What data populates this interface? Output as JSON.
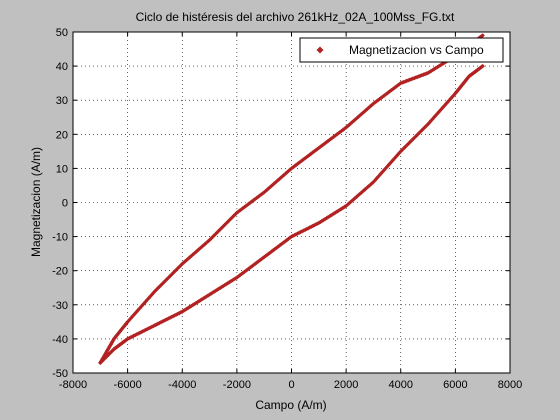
{
  "figure": {
    "background": "#c0c0c0"
  },
  "chart_data": {
    "type": "scatter",
    "title": "Ciclo de histéresis del archivo 261kHz_02A_100Mss_FG.txt",
    "xlabel": "Campo (A/m)",
    "ylabel": "Magnetizacion (A/m)",
    "xlim": [
      -8000,
      8000
    ],
    "ylim": [
      -50,
      50
    ],
    "xticks": [
      -8000,
      -6000,
      -4000,
      -2000,
      0,
      2000,
      4000,
      6000,
      8000
    ],
    "yticks": [
      -50,
      -40,
      -30,
      -20,
      -10,
      0,
      10,
      20,
      30,
      40,
      50
    ],
    "xtick_labels": [
      "-8000",
      "-6000",
      "-4000",
      "-2000",
      "0",
      "2000",
      "4000",
      "6000",
      "8000"
    ],
    "ytick_labels": [
      "-50",
      "-40",
      "-30",
      "-20",
      "-10",
      "0",
      "10",
      "20",
      "30",
      "40",
      "50"
    ],
    "grid": true,
    "grid_style": "dotted",
    "legend_position": "top-right",
    "marker": "diamond",
    "marker_color": "#b22222",
    "series": [
      {
        "name": "Magnetizacion vs Campo",
        "branches": [
          {
            "x": [
              -7000,
              -6500,
              -6000,
              -5000,
              -4000,
              -3000,
              -2000,
              -1000,
              0,
              1000,
              2000,
              3000,
              4000,
              5000,
              6000,
              6500,
              7000
            ],
            "y": [
              -47,
              -40,
              -35,
              -26,
              -18,
              -11,
              -3,
              3,
              10,
              16,
              22,
              29,
              35,
              38,
              43,
              46,
              49
            ]
          },
          {
            "x": [
              7000,
              6500,
              6000,
              5000,
              4000,
              3000,
              2000,
              1000,
              0,
              -1000,
              -2000,
              -3000,
              -4000,
              -5000,
              -6000,
              -6500,
              -7000
            ],
            "y": [
              40,
              37,
              32,
              23,
              15,
              6,
              -1,
              -6,
              -10,
              -16,
              -22,
              -27,
              -32,
              -36,
              -40,
              -43,
              -47
            ]
          }
        ]
      }
    ]
  }
}
